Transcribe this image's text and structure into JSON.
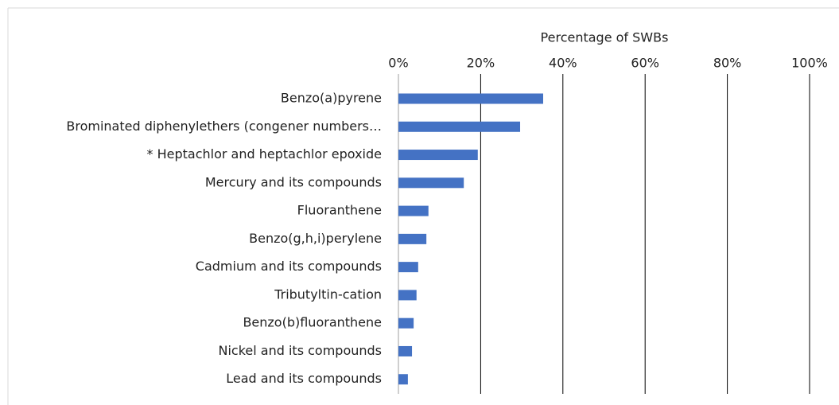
{
  "chart_data": {
    "type": "bar",
    "orientation": "horizontal",
    "x_label": "Percentage of SWBs",
    "categories": [
      "Benzo(a)pyrene",
      "Brominated diphenylethers (congener numbers…",
      "* Heptachlor and heptachlor epoxide",
      "Mercury and its compounds",
      "Fluoranthene",
      "Benzo(g,h,i)perylene",
      "Cadmium and its compounds",
      "Tributyltin-cation",
      "Benzo(b)fluoranthene",
      "Nickel and its compounds",
      "Lead and its compounds"
    ],
    "values": [
      35.2,
      29.6,
      19.3,
      15.9,
      7.3,
      6.8,
      4.8,
      4.4,
      3.7,
      3.3,
      2.3
    ],
    "color": "#4472c4",
    "xlim": [
      0,
      100
    ],
    "xticks": [
      {
        "value": 0,
        "label": "0%"
      },
      {
        "value": 20,
        "label": "20%"
      },
      {
        "value": 40,
        "label": "40%"
      },
      {
        "value": 60,
        "label": "60%"
      },
      {
        "value": 80,
        "label": "80%"
      },
      {
        "value": 100,
        "label": "100%"
      }
    ],
    "grid": true
  }
}
